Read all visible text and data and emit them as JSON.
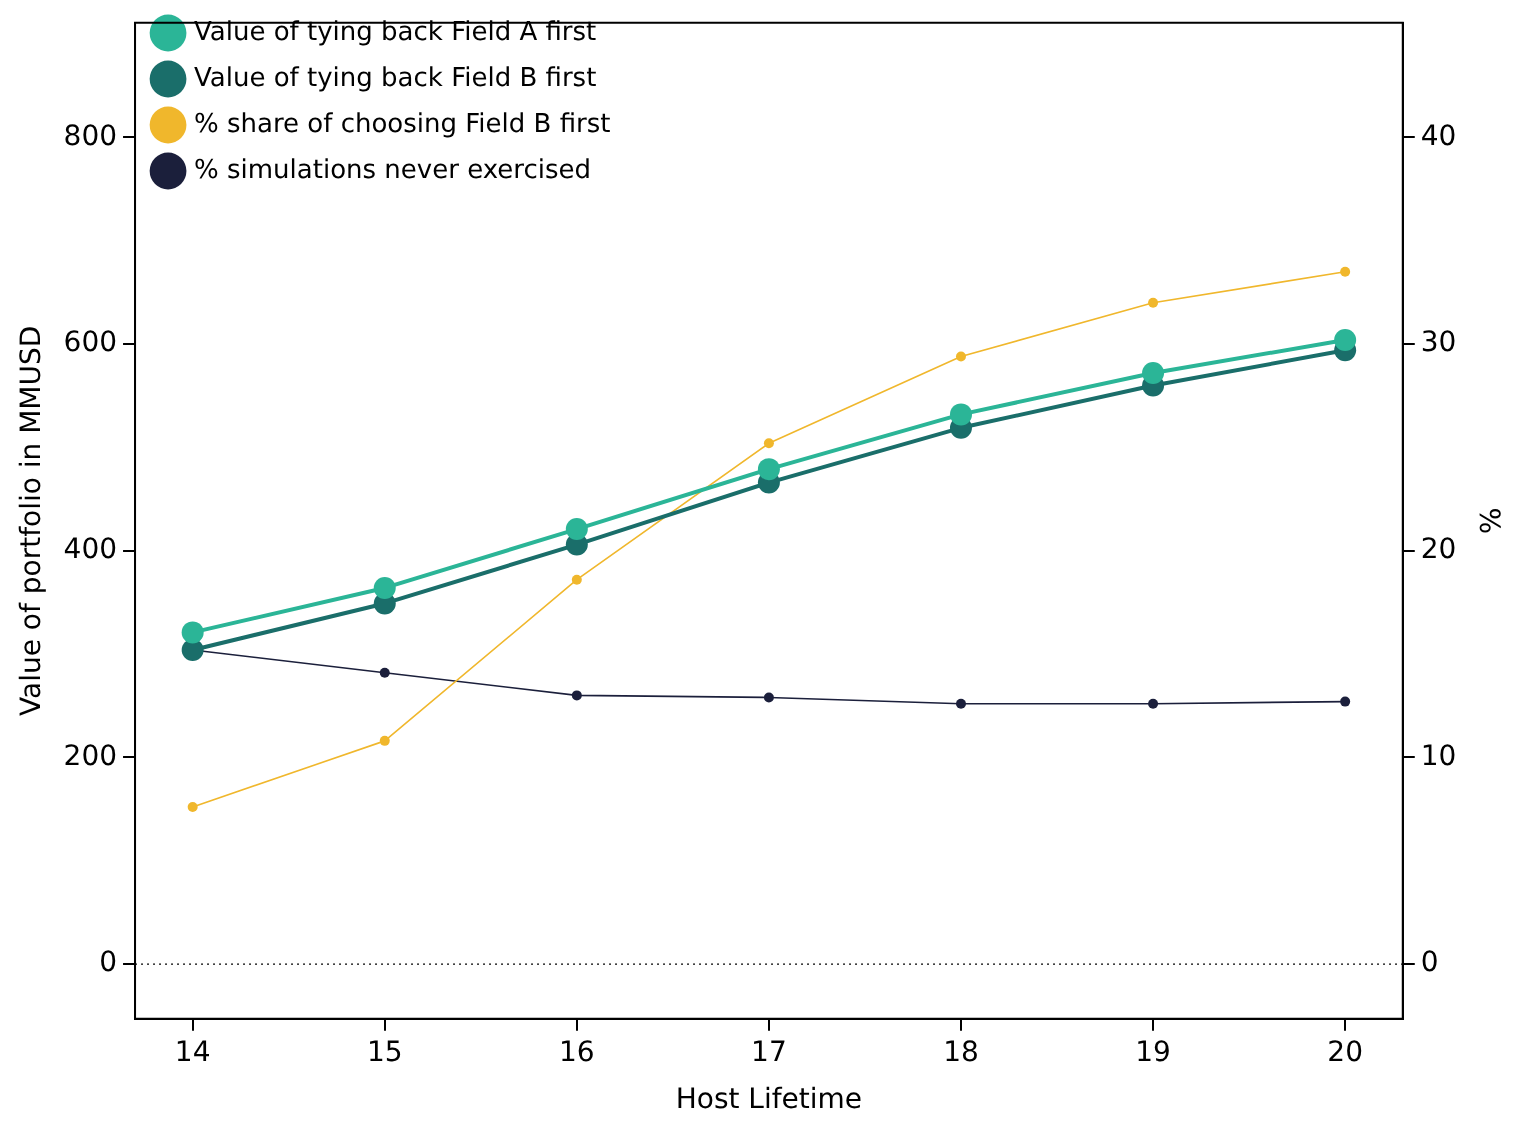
{
  "chart_data": {
    "type": "line",
    "xlabel": "Host Lifetime",
    "ylabel": "Value of portfolio in MMUSD",
    "y2label": "%",
    "x": [
      14,
      15,
      16,
      17,
      18,
      19,
      20
    ],
    "xlim": [
      13.7,
      20.3
    ],
    "xticks": [
      14,
      15,
      16,
      17,
      18,
      19,
      20
    ],
    "ylim": [
      -53,
      911
    ],
    "yticks": [
      0,
      200,
      400,
      600,
      800
    ],
    "y2lim": [
      -2.65,
      45.55
    ],
    "y2ticks": [
      0,
      10,
      20,
      30,
      40
    ],
    "series": [
      {
        "name": "Value of tying back Field A first",
        "color": "#2bb597",
        "values": [
          321,
          364,
          421,
          479,
          532,
          572,
          604
        ]
      },
      {
        "name": "Value of tying back Field B first",
        "color": "#1a6e6a",
        "values": [
          304,
          349,
          406,
          466,
          519,
          560,
          594
        ]
      },
      {
        "name": "% share of choosing Field B first",
        "color": "#f0b72c",
        "axis": "y2",
        "values": [
          7.6,
          10.8,
          18.6,
          25.2,
          29.4,
          32.0,
          33.5
        ]
      },
      {
        "name": "% simulations never exercised",
        "color": "#1b1f3b",
        "axis": "y2",
        "values": [
          15.2,
          14.1,
          13.0,
          12.9,
          12.6,
          12.6,
          12.7
        ]
      }
    ],
    "ref_lines": [
      {
        "axis": "y",
        "value": 0,
        "color": "#000000",
        "line_style": "dotted"
      }
    ],
    "grid": false,
    "legend": "top left",
    "marker": "circle",
    "line_style": "solid"
  }
}
